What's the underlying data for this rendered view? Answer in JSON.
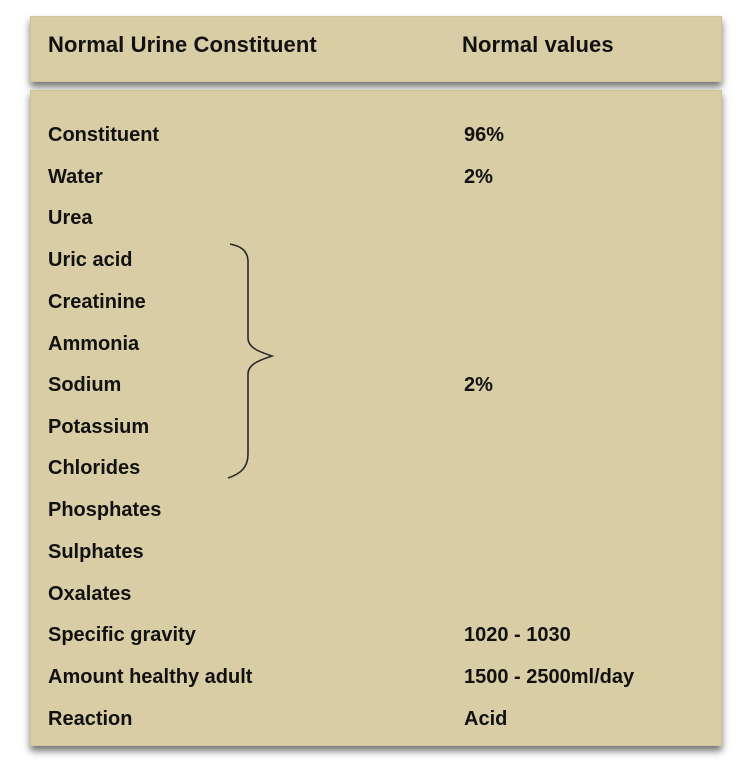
{
  "header": {
    "constituent_label": "Normal Urine Constituent",
    "values_label": "Normal values"
  },
  "rows": [
    {
      "name": "Constituent",
      "value": "96%"
    },
    {
      "name": "Water",
      "value": "2%"
    },
    {
      "name": "Urea",
      "value": ""
    },
    {
      "name": "Uric acid",
      "value": ""
    },
    {
      "name": "Creatinine",
      "value": ""
    },
    {
      "name": "Ammonia",
      "value": ""
    },
    {
      "name": "Sodium",
      "value": "2%"
    },
    {
      "name": "Potassium",
      "value": ""
    },
    {
      "name": "Chlorides",
      "value": ""
    },
    {
      "name": "Phosphates",
      "value": ""
    },
    {
      "name": "Sulphates",
      "value": ""
    },
    {
      "name": "Oxalates",
      "value": ""
    },
    {
      "name": "Specific gravity",
      "value": "1020 - 1030"
    },
    {
      "name": "Amount healthy adult",
      "value": "1500 - 2500ml/day"
    },
    {
      "name": "Reaction",
      "value": "Acid"
    }
  ],
  "colors": {
    "panel_background": "#d8cda4",
    "text": "#111111"
  }
}
